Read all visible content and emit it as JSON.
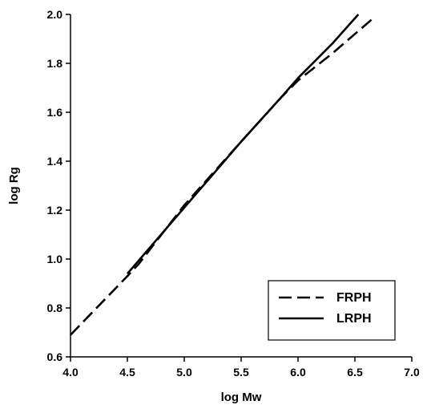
{
  "chart_data": {
    "type": "line",
    "title": "",
    "xlabel": "log Mw",
    "ylabel": "log Rg",
    "xlim": [
      4.0,
      7.0
    ],
    "ylim": [
      0.6,
      2.0
    ],
    "xticks": [
      "4.0",
      "4.5",
      "5.0",
      "5.5",
      "6.0",
      "6.5",
      "7.0"
    ],
    "yticks": [
      "0.6",
      "0.8",
      "1.0",
      "1.2",
      "1.4",
      "1.6",
      "1.8",
      "2.0"
    ],
    "grid": false,
    "legend_position": "bottom-right",
    "series": [
      {
        "name": "FRPH",
        "style": "dashed",
        "x": [
          4.0,
          4.5,
          4.6,
          5.0,
          5.5,
          5.85,
          6.0,
          6.3,
          6.65
        ],
        "y": [
          0.69,
          0.93,
          0.98,
          1.22,
          1.48,
          1.66,
          1.73,
          1.84,
          1.98
        ]
      },
      {
        "name": "LRPH",
        "style": "solid",
        "x": [
          4.5,
          5.0,
          5.5,
          5.85,
          6.0,
          6.3,
          6.53
        ],
        "y": [
          0.94,
          1.21,
          1.48,
          1.66,
          1.74,
          1.88,
          2.0
        ]
      }
    ]
  }
}
